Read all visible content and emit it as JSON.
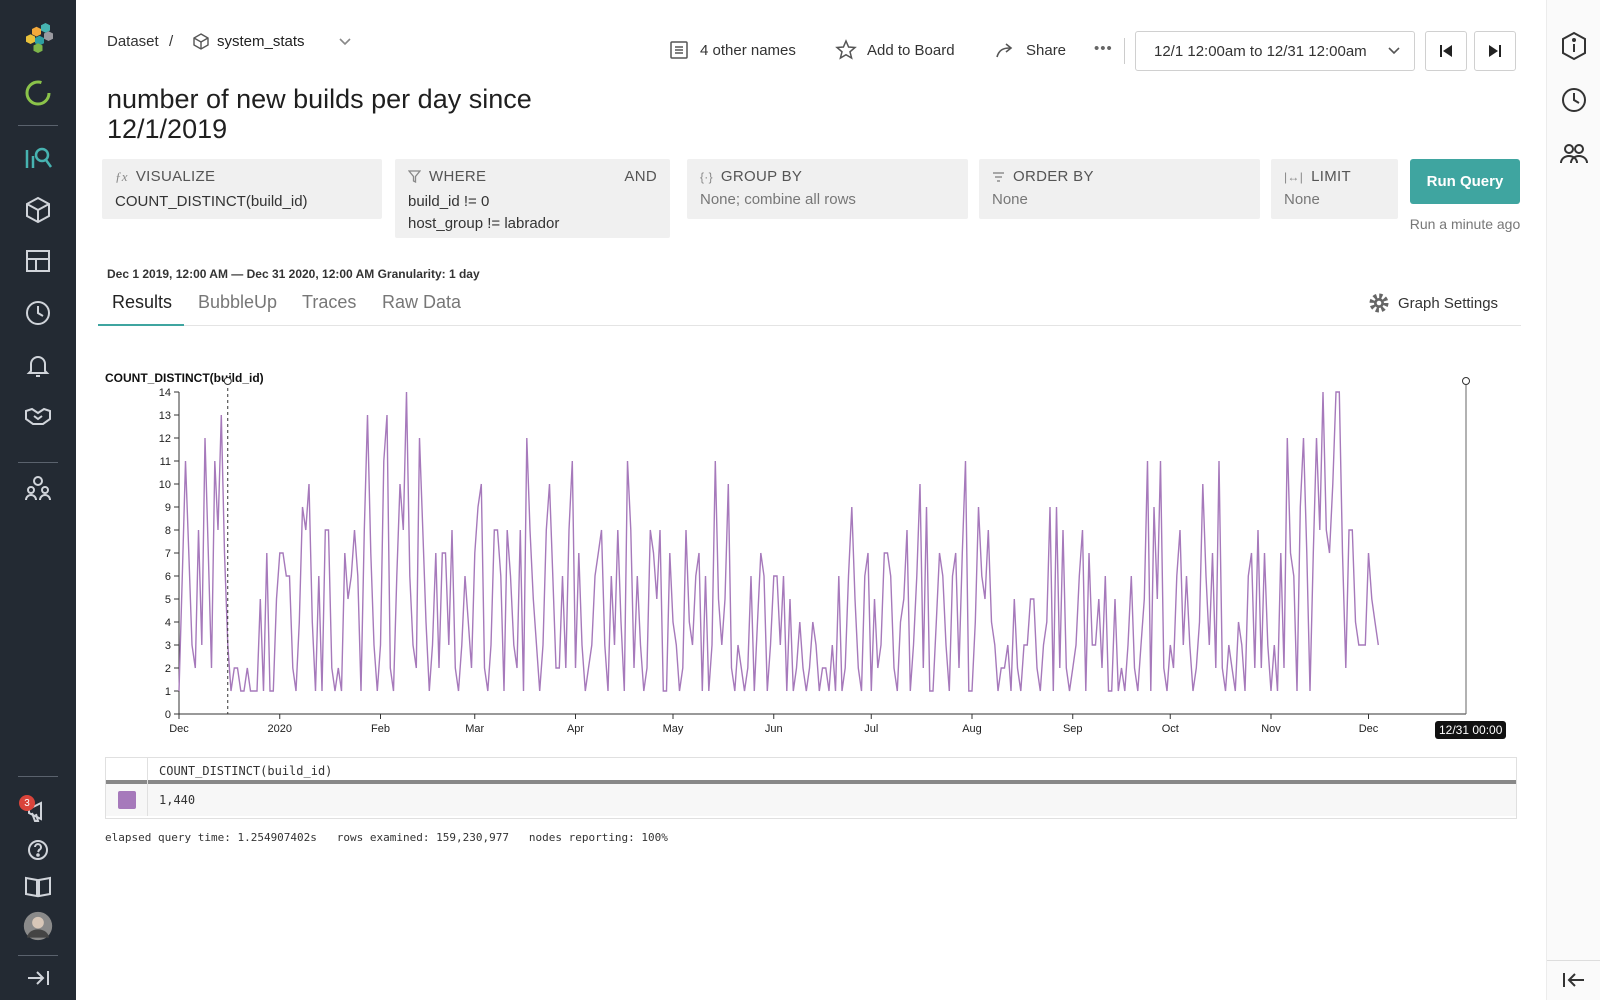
{
  "breadcrumb": {
    "dataset_label": "Dataset",
    "separator": "/",
    "dataset_name": "system_stats"
  },
  "actions": {
    "other_names": "4 other names",
    "add_board": "Add to Board",
    "share": "Share",
    "more": "•••"
  },
  "time_range": "12/1 12:00am to 12/31 12:00am",
  "page_title": "number of new builds per day since 12/1/2019",
  "query": {
    "visualize": {
      "label": "VISUALIZE",
      "value": "COUNT_DISTINCT(build_id)"
    },
    "where": {
      "label": "WHERE",
      "and": "AND",
      "lines": [
        "build_id != 0",
        "host_group != labrador"
      ]
    },
    "group_by": {
      "label": "GROUP BY",
      "value": "None; combine all rows"
    },
    "order_by": {
      "label": "ORDER BY",
      "value": "None"
    },
    "limit": {
      "label": "LIMIT",
      "value": "None"
    },
    "run_button": "Run Query",
    "run_status": "Run a minute ago"
  },
  "result_range": "Dec 1 2019, 12:00 AM — Dec 31 2020, 12:00 AM Granularity: 1 day",
  "tabs": [
    "Results",
    "BubbleUp",
    "Traces",
    "Raw Data"
  ],
  "graph_settings": "Graph Settings",
  "legend": {
    "header": "COUNT_DISTINCT(build_id)",
    "total": "1,440"
  },
  "stats": "elapsed query time: 1.254907402s   rows examined: 159,230,977   nodes reporting: 100%",
  "cursor_label": "12/31 00:00",
  "notifications_badge": "3",
  "colors": {
    "series": "#a679bb",
    "accent": "#3fa5a0",
    "nav_bg": "#232a33"
  },
  "chart_data": {
    "type": "line",
    "ylabel": "COUNT_DISTINCT(build_id)",
    "ylim": [
      0,
      14
    ],
    "yticks": [
      0,
      1,
      2,
      3,
      4,
      5,
      6,
      7,
      8,
      9,
      10,
      11,
      12,
      13,
      14
    ],
    "x_start": "2019-12-01",
    "x_end": "2020-12-31",
    "xticks": [
      {
        "date": "2019-12-01",
        "label": "Dec"
      },
      {
        "date": "2020-01-01",
        "label": "2020"
      },
      {
        "date": "2020-02-01",
        "label": "Feb"
      },
      {
        "date": "2020-03-01",
        "label": "Mar"
      },
      {
        "date": "2020-04-01",
        "label": "Apr"
      },
      {
        "date": "2020-05-01",
        "label": "May"
      },
      {
        "date": "2020-06-01",
        "label": "Jun"
      },
      {
        "date": "2020-07-01",
        "label": "Jul"
      },
      {
        "date": "2020-08-01",
        "label": "Aug"
      },
      {
        "date": "2020-09-01",
        "label": "Sep"
      },
      {
        "date": "2020-10-01",
        "label": "Oct"
      },
      {
        "date": "2020-11-01",
        "label": "Nov"
      },
      {
        "date": "2020-12-01",
        "label": "Dec"
      }
    ],
    "series": [
      {
        "values": [
          1,
          6,
          11,
          7,
          3,
          2,
          8,
          3,
          12,
          7,
          2,
          11,
          8,
          13,
          7,
          3,
          1,
          2,
          2,
          1,
          1,
          2,
          1,
          1,
          1,
          5,
          1,
          7,
          1,
          1,
          5,
          7,
          7,
          6,
          6,
          2,
          1,
          4,
          9,
          8,
          10,
          4,
          1,
          6,
          1,
          8,
          8,
          2,
          1,
          2,
          1,
          7,
          5,
          6,
          8,
          6,
          1,
          8,
          13,
          7,
          3,
          1,
          3,
          11,
          13,
          2,
          1,
          6,
          10,
          8,
          14,
          6,
          3,
          2,
          12,
          8,
          4,
          1,
          3,
          7,
          2,
          7,
          7,
          3,
          8,
          2,
          1,
          3,
          6,
          4,
          2,
          7,
          9,
          10,
          2,
          1,
          3,
          8,
          8,
          6,
          1,
          8,
          6,
          3,
          2,
          8,
          1,
          12,
          8,
          5,
          3,
          1,
          3,
          8,
          10,
          6,
          2,
          2,
          6,
          2,
          8,
          11,
          2,
          7,
          3,
          1,
          2,
          3,
          6,
          7,
          8,
          3,
          1,
          6,
          3,
          8,
          4,
          1,
          11,
          8,
          2,
          6,
          3,
          1,
          2,
          8,
          7,
          5,
          8,
          1,
          1,
          7,
          4,
          3,
          1,
          2,
          8,
          4,
          3,
          6,
          7,
          1,
          6,
          1,
          3,
          11,
          5,
          3,
          5,
          10,
          2,
          1,
          3,
          2,
          1,
          2,
          6,
          1,
          4,
          7,
          6,
          1,
          3,
          6,
          6,
          3,
          6,
          1,
          5,
          1,
          2,
          4,
          2,
          1,
          2,
          4,
          3,
          1,
          2,
          2,
          1,
          3,
          1,
          6,
          1,
          2,
          6,
          9,
          5,
          2,
          1,
          6,
          7,
          1,
          5,
          2,
          3,
          7,
          7,
          6,
          2,
          1,
          4,
          5,
          8,
          1,
          3,
          6,
          10,
          2,
          9,
          1,
          1,
          4,
          7,
          6,
          3,
          1,
          6,
          7,
          2,
          7,
          11,
          1,
          1,
          4,
          9,
          6,
          5,
          8,
          4,
          3,
          1,
          2,
          2,
          3,
          1,
          5,
          2,
          1,
          3,
          3,
          5,
          5,
          2,
          1,
          3,
          4,
          9,
          1,
          9,
          2,
          8,
          2,
          1,
          2,
          3,
          6,
          8,
          1,
          7,
          3,
          3,
          5,
          2,
          6,
          1,
          1,
          5,
          1,
          2,
          1,
          3,
          6,
          2,
          1,
          3,
          5,
          11,
          1,
          9,
          5,
          11,
          2,
          1,
          3,
          2,
          6,
          8,
          3,
          6,
          3,
          1,
          2,
          4,
          10,
          6,
          3,
          7,
          2,
          11,
          2,
          1,
          3,
          2,
          1,
          4,
          3,
          1,
          6,
          7,
          2,
          8,
          2,
          7,
          3,
          1,
          3,
          1,
          7,
          2,
          12,
          7,
          6,
          1,
          9,
          12,
          7,
          1,
          7,
          12,
          8,
          14,
          8,
          7,
          10,
          14,
          14,
          7,
          2,
          8,
          8,
          4,
          3,
          3,
          3,
          7,
          5,
          4,
          3
        ]
      }
    ]
  }
}
